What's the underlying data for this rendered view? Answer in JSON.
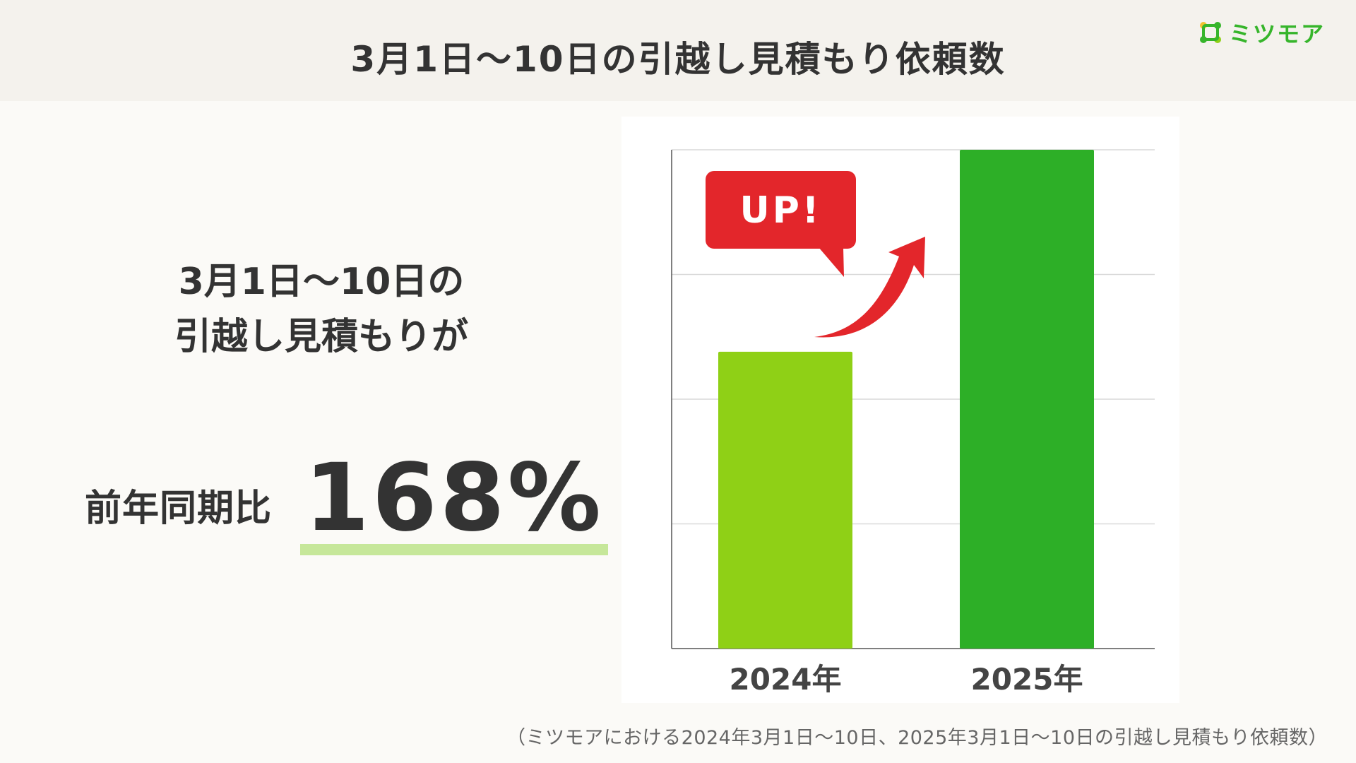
{
  "header": {
    "title": "3月1日〜10日の引越し見積もり依頼数"
  },
  "logo": {
    "text": "ミツモア",
    "icon": "mitsumore-logo-icon",
    "color": "#36b52b"
  },
  "headline": {
    "line1": "3月1日〜10日の",
    "line2": "引越し見積もりが"
  },
  "comparison": {
    "label": "前年同期比",
    "value": "168%"
  },
  "callout": {
    "text": "UP!",
    "color": "#e3262b"
  },
  "footnote": "（ミツモアにおける2024年3月1日〜10日、2025年3月1日〜10日の引越し見積もり依頼数）",
  "colors": {
    "bar2024": "#8fd016",
    "bar2025": "#2daf27",
    "underline": "#c6e79a"
  },
  "chart_data": {
    "type": "bar",
    "categories": [
      "2024年",
      "2025年"
    ],
    "values": [
      59.5,
      100
    ],
    "ylim": [
      0,
      100
    ],
    "grid": true,
    "title": "",
    "xlabel": "",
    "ylabel": ""
  }
}
